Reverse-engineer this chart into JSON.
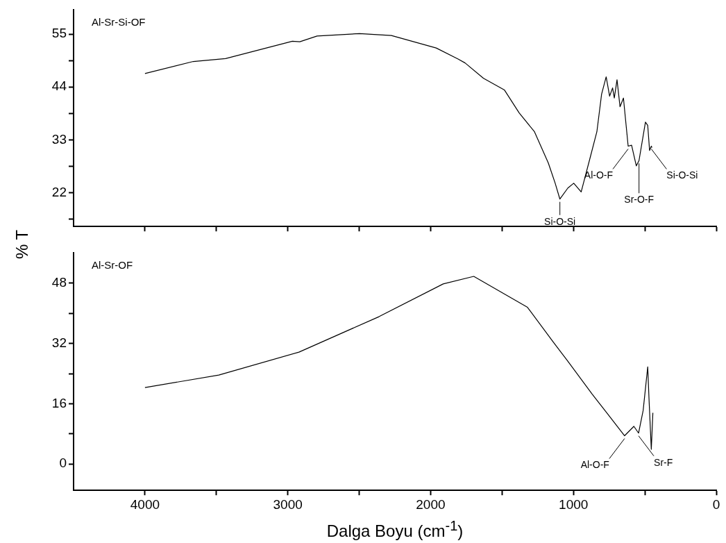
{
  "chart_data": [
    {
      "type": "line",
      "title": "Al-Sr-Si-OF",
      "ylabel": "% T",
      "tick_labels": "y",
      "xlim": [
        4500,
        0
      ],
      "xticks": [
        {
          "value": 4000,
          "label": null
        },
        {
          "value": 3500,
          "label": null
        },
        {
          "value": 3000,
          "label": null
        },
        {
          "value": 2500,
          "label": null
        },
        {
          "value": 2000,
          "label": null
        },
        {
          "value": 1500,
          "label": null
        },
        {
          "value": 1000,
          "label": null
        },
        {
          "value": 500,
          "label": null
        },
        {
          "value": 0,
          "label": null
        }
      ],
      "ylim": [
        15,
        60
      ],
      "yticks": [
        {
          "value": 16.5,
          "label": null
        },
        22,
        {
          "value": 27.5,
          "label": null
        },
        33,
        {
          "value": 38.5,
          "label": null
        },
        44,
        {
          "value": 49.5,
          "label": null
        },
        55
      ],
      "x": [
        4000,
        3662,
        3436,
        2968,
        2916,
        2795,
        2498,
        2275,
        1961,
        1808,
        1759,
        1630,
        1484,
        1380,
        1273,
        1176,
        1128,
        1095,
        1039,
        998,
        946,
        885,
        836,
        803,
        771,
        747,
        726,
        714,
        695,
        674,
        650,
        617,
        593,
        560,
        541,
        496,
        480,
        467,
        455,
        450
      ],
      "series": [
        {
          "color": "#000000",
          "values": [
            46.8,
            49.3,
            49.9,
            53.5,
            53.4,
            54.6,
            55.1,
            54.7,
            52.1,
            49.8,
            49.0,
            45.8,
            43.4,
            38.6,
            34.7,
            28.2,
            24.0,
            20.7,
            23.0,
            24.0,
            22.2,
            29.1,
            34.7,
            42.5,
            46.1,
            42.1,
            43.8,
            41.7,
            45.5,
            39.9,
            41.7,
            31.7,
            31.9,
            27.6,
            28.7,
            36.7,
            36.0,
            30.8,
            31.7,
            31.4
          ]
        }
      ],
      "annotations": [
        {
          "text": "Si-O-Si",
          "x": 1095,
          "y": 20.7
        },
        {
          "text": "Al-O-F",
          "x": 617,
          "y": 31.7
        },
        {
          "text": "Sr-O-F",
          "x": 541,
          "y": 28.7
        },
        {
          "text": "Si-O-Si",
          "x": 455,
          "y": 31.7
        }
      ]
    },
    {
      "type": "line",
      "title": "Al-Sr-OF",
      "xlabel": "Dalga Boyu (cm$^{-1}$)",
      "xlim": [
        4500,
        0
      ],
      "xticks": [
        4000,
        {
          "value": 3500,
          "label": null
        },
        3000,
        {
          "value": 2500,
          "label": null
        },
        2000,
        {
          "value": 1500,
          "label": null
        },
        1000,
        {
          "value": 500,
          "label": null
        },
        0
      ],
      "ylim": [
        -7,
        56
      ],
      "yticks": [
        0,
        {
          "value": 8,
          "label": null
        },
        16,
        {
          "value": 24,
          "label": null
        },
        32,
        {
          "value": 40,
          "label": null
        },
        48
      ],
      "x": [
        4000,
        3483,
        2922,
        2362,
        1912,
        1698,
        1322,
        1144,
        1046,
        868,
        755,
        642,
        577,
        544,
        512,
        480,
        471,
        455,
        444
      ],
      "series": [
        {
          "color": "#000000",
          "values": [
            20.3,
            23.6,
            29.7,
            39.1,
            47.8,
            49.8,
            41.6,
            32.5,
            27.6,
            18.5,
            13.0,
            7.5,
            10.0,
            8.2,
            14.2,
            25.8,
            17.3,
            3.9,
            13.6
          ]
        }
      ],
      "annotations": [
        {
          "text": "Al-O-F",
          "x": 642,
          "y": 7.5
        },
        {
          "text": "Sr-F",
          "x": 544,
          "y": 8.2
        }
      ]
    }
  ]
}
